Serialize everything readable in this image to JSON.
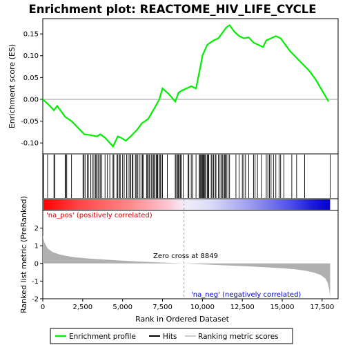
{
  "chart_data": {
    "type": "line",
    "title": "Enrichment plot: REACTOME_HIV_LIFE_CYCLE",
    "top_panel": {
      "ylabel": "Enrichment score (ES)",
      "ylim": [
        -0.125,
        0.185
      ],
      "yticks": [
        -0.1,
        -0.05,
        0.0,
        0.05,
        0.1,
        0.15
      ],
      "ytick_labels": [
        "-0.10",
        "-0.05",
        "0.00",
        "0.05",
        "0.10",
        "0.15"
      ],
      "series": [
        {
          "name": "Enrichment profile",
          "color": "#00ee00",
          "x": [
            0,
            300,
            700,
            900,
            1400,
            1800,
            2200,
            2600,
            3000,
            3400,
            3600,
            3900,
            4200,
            4400,
            4700,
            4900,
            5200,
            5500,
            5900,
            6200,
            6600,
            7000,
            7300,
            7500,
            7900,
            8300,
            8500,
            8700,
            9000,
            9300,
            9600,
            9900,
            10000,
            10300,
            10700,
            11000,
            11300,
            11500,
            11700,
            12000,
            12300,
            12600,
            12900,
            13200,
            13500,
            13800,
            14000,
            14300,
            14600,
            14900,
            15200,
            15500,
            15900,
            16300,
            16700,
            17100,
            17500,
            17900
          ],
          "y": [
            0.0,
            -0.01,
            -0.025,
            -0.015,
            -0.04,
            -0.05,
            -0.065,
            -0.08,
            -0.082,
            -0.085,
            -0.08,
            -0.088,
            -0.1,
            -0.108,
            -0.085,
            -0.088,
            -0.095,
            -0.085,
            -0.07,
            -0.055,
            -0.045,
            -0.02,
            0.0,
            0.025,
            0.012,
            -0.005,
            0.015,
            0.02,
            0.025,
            0.03,
            0.025,
            0.08,
            0.1,
            0.125,
            0.135,
            0.14,
            0.155,
            0.165,
            0.17,
            0.155,
            0.145,
            0.14,
            0.142,
            0.13,
            0.125,
            0.12,
            0.135,
            0.14,
            0.145,
            0.14,
            0.125,
            0.11,
            0.095,
            0.08,
            0.065,
            0.045,
            0.02,
            -0.005
          ]
        }
      ]
    },
    "hits_panel": {
      "name": "Hits",
      "positions": [
        50,
        300,
        700,
        760,
        1400,
        1430,
        1500,
        1800,
        2520,
        2580,
        2650,
        2800,
        2850,
        3000,
        3100,
        3200,
        3300,
        3350,
        3460,
        3520,
        3600,
        3700,
        3900,
        4050,
        4200,
        4400,
        4450,
        4650,
        4700,
        4800,
        4850,
        5000,
        5100,
        5250,
        5350,
        5450,
        5500,
        5600,
        5650,
        5800,
        5850,
        5950,
        6050,
        6150,
        6250,
        6300,
        6500,
        6550,
        6650,
        6700,
        6800,
        6900,
        6950,
        7000,
        7100,
        7150,
        7200,
        7280,
        7350,
        7400,
        7500,
        7800,
        8300,
        8350,
        8450,
        8500,
        8550,
        8620,
        8700,
        8800,
        9100,
        9150,
        9300,
        9400,
        9600,
        9800,
        9850,
        9900,
        9950,
        10000,
        10050,
        10100,
        10150,
        10200,
        10300,
        10350,
        10400,
        10550,
        10600,
        10700,
        10800,
        10850,
        11000,
        11100,
        11200,
        11250,
        11350,
        11400,
        11450,
        11500,
        11600,
        11700,
        12100,
        12300,
        12500,
        12600,
        12700,
        12900,
        13200,
        13300,
        13450,
        13700,
        14000,
        14100,
        14200,
        14300,
        14450,
        14600,
        14800,
        14900,
        15100,
        15600,
        15900,
        16400,
        18000
      ]
    },
    "rank_panel": {
      "name": "Ranking metric scores",
      "ylabel": "Ranked list metric (PreRanked)",
      "ylim": [
        -2.0,
        3.0
      ],
      "yticks": [
        -2,
        -1,
        0,
        1,
        2
      ],
      "ytick_labels": [
        "-2",
        "-1",
        "0",
        "1",
        "2"
      ],
      "xlabel": "Rank in Ordered Dataset",
      "xlim": [
        0,
        18500
      ],
      "xticks": [
        0,
        2500,
        5000,
        7500,
        10000,
        12500,
        15000,
        17500
      ],
      "xtick_labels": [
        "0",
        "2,500",
        "5,000",
        "7,500",
        "10,000",
        "12,500",
        "15,000",
        "17,500"
      ],
      "metric_curve": {
        "x": [
          0,
          100,
          300,
          600,
          1000,
          1500,
          2000,
          3000,
          4000,
          5000,
          6000,
          7000,
          8000,
          8849,
          10000,
          11000,
          12000,
          13000,
          14000,
          15000,
          15800,
          16500,
          17000,
          17400,
          17700,
          17850,
          17950,
          18000
        ],
        "y": [
          1.6,
          1.2,
          0.85,
          0.65,
          0.52,
          0.42,
          0.35,
          0.27,
          0.21,
          0.16,
          0.11,
          0.07,
          0.03,
          0.0,
          -0.05,
          -0.09,
          -0.13,
          -0.17,
          -0.22,
          -0.27,
          -0.33,
          -0.42,
          -0.52,
          -0.65,
          -0.85,
          -1.1,
          -1.5,
          -1.9
        ]
      },
      "zero_cross": 8849,
      "annotations": {
        "pos_label": "'na_pos' (positively correlated)",
        "neg_label": "'na_neg' (negatively correlated)",
        "zero_cross_label": "Zero cross at 8849"
      }
    },
    "legend": {
      "placement": "bottom",
      "entries": [
        {
          "name": "Enrichment profile",
          "color": "#00ee00"
        },
        {
          "name": "Hits",
          "color": "#000000"
        },
        {
          "name": "Ranking metric scores",
          "color": "#bbbbbb"
        }
      ]
    },
    "colors": {
      "profile": "#00ee00",
      "pos_band": "#ff0000",
      "neg_band": "#0000ff",
      "metric_fill": "#b0b0b0",
      "pos_label": "#cc0000",
      "neg_label": "#0000cc"
    }
  }
}
